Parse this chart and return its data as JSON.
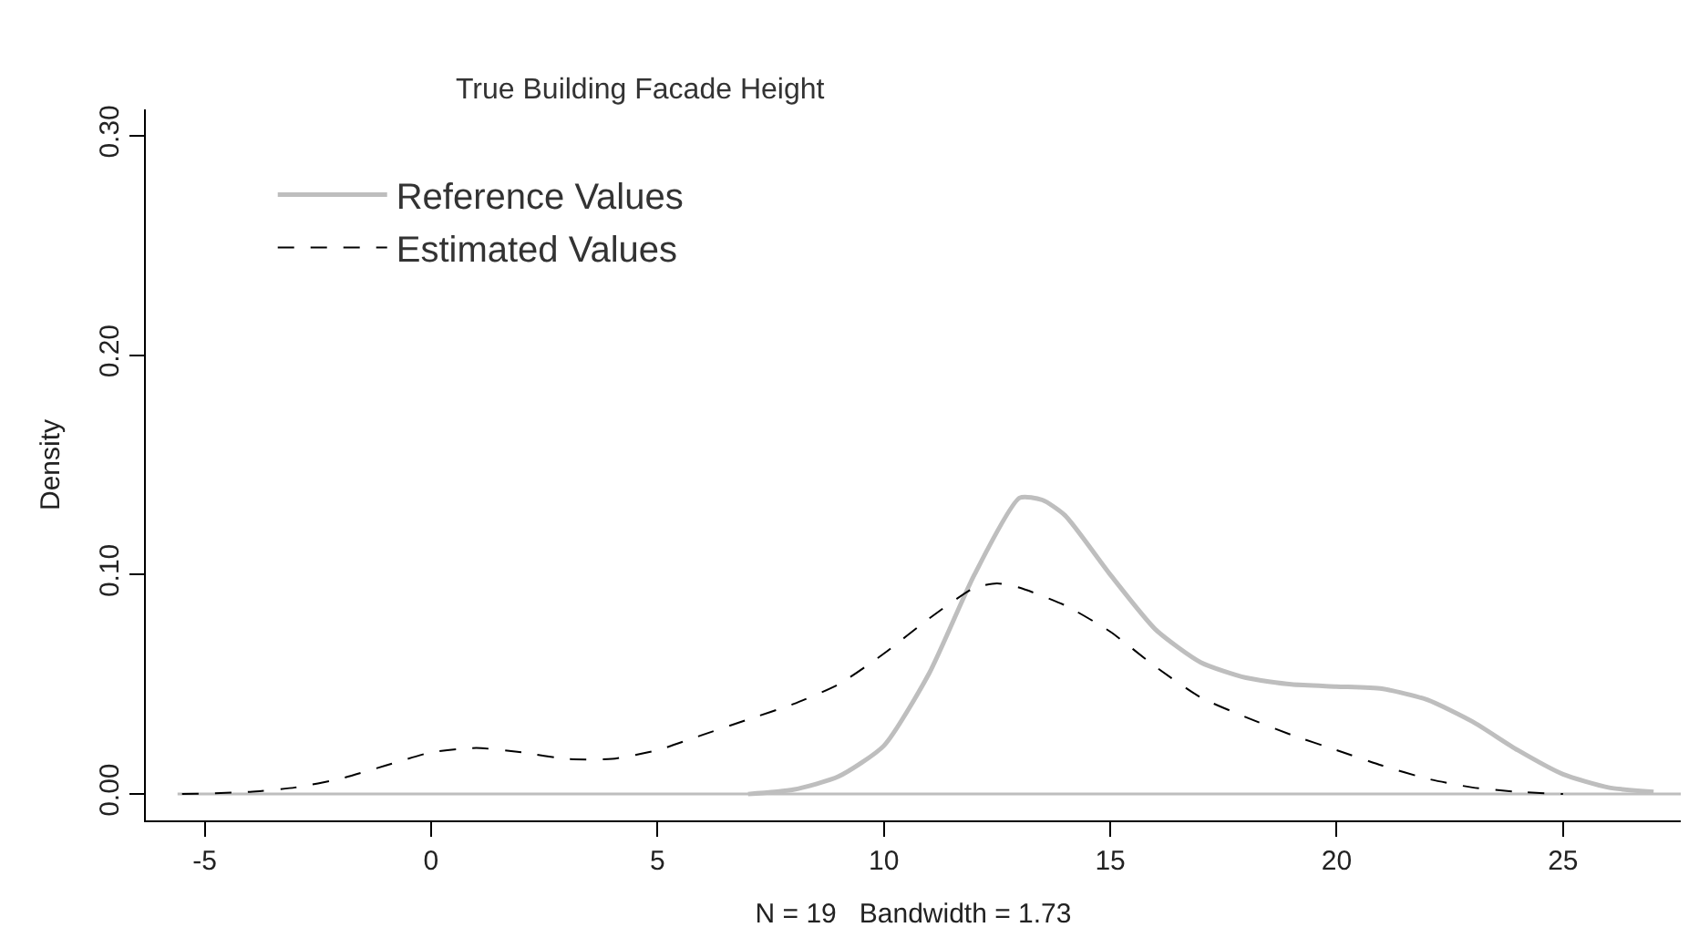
{
  "chart_data": {
    "type": "line",
    "xlabel": "N = 19   Bandwidth = 1.73",
    "ylabel": "Density",
    "annotations": [
      "True Building Facade Height"
    ],
    "series": [
      {
        "name": "Reference Values",
        "color": "#bebebe",
        "line_style": "solid",
        "x": [
          7,
          8,
          9,
          10,
          11,
          12,
          13,
          13.5,
          14,
          15,
          16,
          17,
          18,
          19,
          20,
          21,
          22,
          23,
          24,
          25,
          26,
          27
        ],
        "values": [
          0,
          0.002,
          0.008,
          0.022,
          0.055,
          0.1,
          0.135,
          0.134,
          0.127,
          0.1,
          0.075,
          0.06,
          0.053,
          0.05,
          0.049,
          0.048,
          0.043,
          0.033,
          0.02,
          0.009,
          0.003,
          0.001
        ]
      },
      {
        "name": "Estimated Values",
        "color": "#000000",
        "line_style": "dashed",
        "x": [
          -5.5,
          -4,
          -3,
          -2,
          -1,
          0,
          1,
          2,
          3,
          4,
          5,
          6,
          7,
          8,
          9,
          10,
          11,
          12,
          12.5,
          13,
          14,
          15,
          16,
          17,
          18,
          19,
          20,
          21,
          22,
          23,
          24,
          25
        ],
        "values": [
          0,
          0.001,
          0.003,
          0.007,
          0.013,
          0.019,
          0.021,
          0.019,
          0.016,
          0.016,
          0.02,
          0.027,
          0.034,
          0.041,
          0.05,
          0.064,
          0.08,
          0.094,
          0.096,
          0.094,
          0.086,
          0.074,
          0.058,
          0.044,
          0.035,
          0.027,
          0.02,
          0.013,
          0.007,
          0.003,
          0.001,
          0
        ]
      }
    ],
    "xlim": [
      -6.3,
      27.6
    ],
    "ylim": [
      -0.012,
      0.312
    ],
    "xticks": [
      -5,
      0,
      5,
      10,
      15,
      20,
      25
    ],
    "yticks": [
      {
        "value": 0,
        "label": "0.00"
      },
      {
        "value": 0.1,
        "label": "0.10"
      },
      {
        "value": 0.2,
        "label": "0.20"
      },
      {
        "value": 0.3,
        "label": "0.30"
      }
    ],
    "ref_lines": [
      {
        "axis": "y",
        "value": 0,
        "color": "#bebebe"
      }
    ],
    "grid": false,
    "legend": "top left"
  }
}
